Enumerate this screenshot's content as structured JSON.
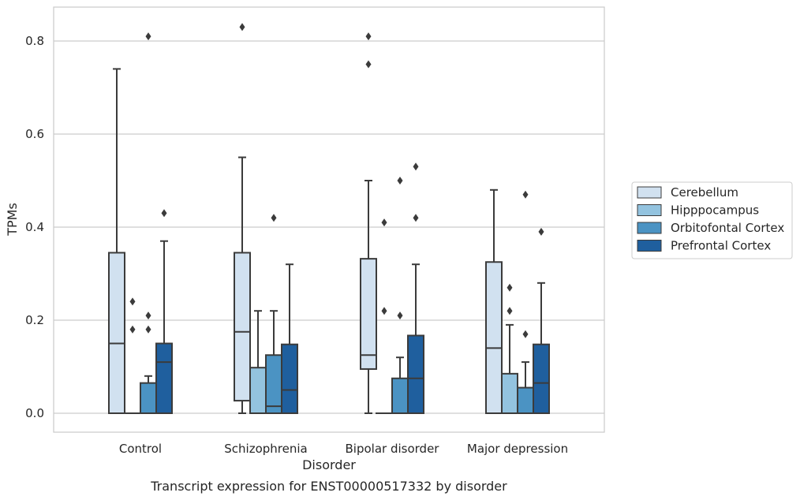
{
  "chart_data": {
    "type": "boxplot",
    "title": "",
    "caption": "Transcript expression for ENST00000517332 by disorder",
    "xlabel": "Disorder",
    "ylabel": "TPMs",
    "ylim": [
      -0.04,
      0.875
    ],
    "yticks": [
      0.0,
      0.2,
      0.4,
      0.6,
      0.8
    ],
    "ytick_labels": [
      "0.0",
      "0.2",
      "0.4",
      "0.6",
      "0.8"
    ],
    "grid": "horizontal",
    "legend_position": "right",
    "categories": [
      "Control",
      "Schizophrenia",
      "Bipolar disorder",
      "Major depression"
    ],
    "series": [
      {
        "name": "Cerebellum",
        "color": "#d1e1f0",
        "boxes": [
          {
            "whislo": 0.0,
            "q1": 0.0,
            "med": 0.15,
            "q3": 0.345,
            "whishi": 0.74,
            "fliers": []
          },
          {
            "whislo": 0.0,
            "q1": 0.027,
            "med": 0.175,
            "q3": 0.345,
            "whishi": 0.55,
            "fliers": [
              0.83
            ]
          },
          {
            "whislo": 0.0,
            "q1": 0.095,
            "med": 0.125,
            "q3": 0.332,
            "whishi": 0.5,
            "fliers": [
              0.81,
              0.75
            ]
          },
          {
            "whislo": 0.0,
            "q1": 0.0,
            "med": 0.14,
            "q3": 0.325,
            "whishi": 0.48,
            "fliers": []
          }
        ]
      },
      {
        "name": "Hipppocampus",
        "color": "#93c3df",
        "boxes": [
          {
            "whislo": 0.0,
            "q1": 0.0,
            "med": 0.0,
            "q3": 0.0,
            "whishi": 0.0,
            "fliers": [
              0.24,
              0.18
            ]
          },
          {
            "whislo": 0.0,
            "q1": 0.0,
            "med": 0.0,
            "q3": 0.098,
            "whishi": 0.22,
            "fliers": []
          },
          {
            "whislo": 0.0,
            "q1": 0.0,
            "med": 0.0,
            "q3": 0.0,
            "whishi": 0.0,
            "fliers": [
              0.41,
              0.22
            ]
          },
          {
            "whislo": 0.0,
            "q1": 0.0,
            "med": 0.0,
            "q3": 0.085,
            "whishi": 0.19,
            "fliers": [
              0.27,
              0.22
            ]
          }
        ]
      },
      {
        "name": "Orbitofontal Cortex",
        "color": "#4b93c3",
        "boxes": [
          {
            "whislo": 0.0,
            "q1": 0.0,
            "med": 0.0,
            "q3": 0.065,
            "whishi": 0.08,
            "fliers": [
              0.81,
              0.21,
              0.18
            ]
          },
          {
            "whislo": 0.0,
            "q1": 0.0,
            "med": 0.015,
            "q3": 0.125,
            "whishi": 0.22,
            "fliers": [
              0.42
            ]
          },
          {
            "whislo": 0.0,
            "q1": 0.0,
            "med": 0.0,
            "q3": 0.075,
            "whishi": 0.12,
            "fliers": [
              0.5,
              0.21
            ]
          },
          {
            "whislo": 0.0,
            "q1": 0.0,
            "med": 0.0,
            "q3": 0.055,
            "whishi": 0.11,
            "fliers": [
              0.47,
              0.17
            ]
          }
        ]
      },
      {
        "name": "Prefrontal Cortex",
        "color": "#1f5f9e",
        "boxes": [
          {
            "whislo": 0.0,
            "q1": 0.0,
            "med": 0.11,
            "q3": 0.15,
            "whishi": 0.37,
            "fliers": [
              0.43
            ]
          },
          {
            "whislo": 0.0,
            "q1": 0.0,
            "med": 0.05,
            "q3": 0.148,
            "whishi": 0.32,
            "fliers": []
          },
          {
            "whislo": 0.0,
            "q1": 0.0,
            "med": 0.075,
            "q3": 0.167,
            "whishi": 0.32,
            "fliers": [
              0.53,
              0.42
            ]
          },
          {
            "whislo": 0.0,
            "q1": 0.0,
            "med": 0.065,
            "q3": 0.148,
            "whishi": 0.28,
            "fliers": [
              0.39
            ]
          }
        ]
      }
    ]
  }
}
